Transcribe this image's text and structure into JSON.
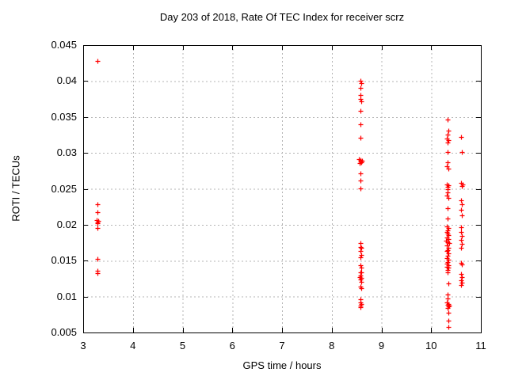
{
  "chart_data": {
    "type": "scatter",
    "title": "Day 203 of 2018, Rate Of TEC Index for receiver scrz",
    "xlabel": "GPS time / hours",
    "ylabel": "ROTI / TECUs",
    "xlim": [
      3,
      11
    ],
    "ylim": [
      0.005,
      0.045
    ],
    "xticks": [
      3,
      4,
      5,
      6,
      7,
      8,
      9,
      10,
      11
    ],
    "xtick_labels": [
      "3",
      "4",
      "5",
      "6",
      "7",
      "8",
      "9",
      "10",
      "11"
    ],
    "yticks": [
      0.005,
      0.01,
      0.015,
      0.02,
      0.025,
      0.03,
      0.035,
      0.04,
      0.045
    ],
    "ytick_labels": [
      "0.005",
      "0.01",
      "0.015",
      "0.02",
      "0.025",
      "0.03",
      "0.035",
      "0.04",
      "0.045"
    ],
    "grid": true,
    "legend_position": "none",
    "marker": {
      "shape": "plus",
      "size": 7,
      "color": "#ff0000"
    },
    "colors": {
      "background": "#ffffff",
      "axis": "#000000",
      "grid": "#b4b4b4",
      "text": "#000000",
      "points": "#ff0000"
    },
    "points": [
      [
        3.28,
        0.0428
      ],
      [
        3.29,
        0.0228
      ],
      [
        3.29,
        0.0217
      ],
      [
        3.27,
        0.0206
      ],
      [
        3.3,
        0.0205
      ],
      [
        3.28,
        0.0203
      ],
      [
        3.29,
        0.0202
      ],
      [
        3.29,
        0.0195
      ],
      [
        3.29,
        0.0153
      ],
      [
        3.29,
        0.0136
      ],
      [
        3.29,
        0.0133
      ],
      [
        8.57,
        0.04
      ],
      [
        8.59,
        0.0397
      ],
      [
        8.58,
        0.039
      ],
      [
        8.58,
        0.0381
      ],
      [
        8.58,
        0.0375
      ],
      [
        8.6,
        0.0372
      ],
      [
        8.58,
        0.0358
      ],
      [
        8.58,
        0.034
      ],
      [
        8.58,
        0.0321
      ],
      [
        8.55,
        0.0291
      ],
      [
        8.58,
        0.029
      ],
      [
        8.61,
        0.0289
      ],
      [
        8.57,
        0.0288
      ],
      [
        8.6,
        0.0287
      ],
      [
        8.56,
        0.0286
      ],
      [
        8.58,
        0.0272
      ],
      [
        8.58,
        0.0262
      ],
      [
        8.58,
        0.0251
      ],
      [
        8.58,
        0.0175
      ],
      [
        8.57,
        0.0169
      ],
      [
        8.59,
        0.0168
      ],
      [
        8.58,
        0.0164
      ],
      [
        8.59,
        0.0158
      ],
      [
        8.58,
        0.0155
      ],
      [
        8.58,
        0.0144
      ],
      [
        8.59,
        0.014
      ],
      [
        8.57,
        0.0134
      ],
      [
        8.6,
        0.0134
      ],
      [
        8.58,
        0.0129
      ],
      [
        8.56,
        0.0127
      ],
      [
        8.6,
        0.0126
      ],
      [
        8.58,
        0.0124
      ],
      [
        8.59,
        0.012
      ],
      [
        8.57,
        0.0114
      ],
      [
        8.6,
        0.0112
      ],
      [
        8.58,
        0.0096
      ],
      [
        8.57,
        0.0092
      ],
      [
        8.59,
        0.009
      ],
      [
        8.58,
        0.0088
      ],
      [
        8.58,
        0.0085
      ],
      [
        10.33,
        0.0346
      ],
      [
        10.35,
        0.0331
      ],
      [
        10.33,
        0.0325
      ],
      [
        10.31,
        0.032
      ],
      [
        10.34,
        0.0318
      ],
      [
        10.33,
        0.0314
      ],
      [
        10.33,
        0.0301
      ],
      [
        10.33,
        0.0287
      ],
      [
        10.32,
        0.0281
      ],
      [
        10.34,
        0.0278
      ],
      [
        10.31,
        0.0256
      ],
      [
        10.34,
        0.0255
      ],
      [
        10.33,
        0.0253
      ],
      [
        10.33,
        0.025
      ],
      [
        10.33,
        0.0245
      ],
      [
        10.32,
        0.0241
      ],
      [
        10.34,
        0.0237
      ],
      [
        10.33,
        0.0223
      ],
      [
        10.33,
        0.0209
      ],
      [
        10.32,
        0.0198
      ],
      [
        10.34,
        0.0195
      ],
      [
        10.33,
        0.0192
      ],
      [
        10.31,
        0.019
      ],
      [
        10.33,
        0.0188
      ],
      [
        10.35,
        0.0185
      ],
      [
        10.32,
        0.0182
      ],
      [
        10.34,
        0.018
      ],
      [
        10.3,
        0.0178
      ],
      [
        10.33,
        0.0176
      ],
      [
        10.36,
        0.0174
      ],
      [
        10.32,
        0.0171
      ],
      [
        10.34,
        0.0168
      ],
      [
        10.33,
        0.0165
      ],
      [
        10.31,
        0.0163
      ],
      [
        10.34,
        0.016
      ],
      [
        10.33,
        0.0157
      ],
      [
        10.32,
        0.0154
      ],
      [
        10.34,
        0.0151
      ],
      [
        10.33,
        0.0148
      ],
      [
        10.31,
        0.0146
      ],
      [
        10.35,
        0.0144
      ],
      [
        10.32,
        0.0142
      ],
      [
        10.34,
        0.014
      ],
      [
        10.33,
        0.0137
      ],
      [
        10.33,
        0.0134
      ],
      [
        10.34,
        0.0118
      ],
      [
        10.33,
        0.0103
      ],
      [
        10.33,
        0.0097
      ],
      [
        10.32,
        0.0092
      ],
      [
        10.35,
        0.009
      ],
      [
        10.33,
        0.0089
      ],
      [
        10.36,
        0.0088
      ],
      [
        10.34,
        0.0086
      ],
      [
        10.33,
        0.0084
      ],
      [
        10.34,
        0.0078
      ],
      [
        10.34,
        0.0067
      ],
      [
        10.34,
        0.0058
      ],
      [
        10.6,
        0.0322
      ],
      [
        10.62,
        0.0301
      ],
      [
        10.6,
        0.0258
      ],
      [
        10.63,
        0.0256
      ],
      [
        10.61,
        0.0254
      ],
      [
        10.6,
        0.0234
      ],
      [
        10.61,
        0.0228
      ],
      [
        10.6,
        0.0221
      ],
      [
        10.61,
        0.0213
      ],
      [
        10.6,
        0.0197
      ],
      [
        10.6,
        0.019
      ],
      [
        10.61,
        0.0184
      ],
      [
        10.6,
        0.0179
      ],
      [
        10.61,
        0.0173
      ],
      [
        10.6,
        0.0168
      ],
      [
        10.6,
        0.0147
      ],
      [
        10.62,
        0.0145
      ],
      [
        10.6,
        0.0131
      ],
      [
        10.61,
        0.0127
      ],
      [
        10.6,
        0.0123
      ],
      [
        10.61,
        0.0119
      ],
      [
        10.6,
        0.0116
      ]
    ]
  }
}
